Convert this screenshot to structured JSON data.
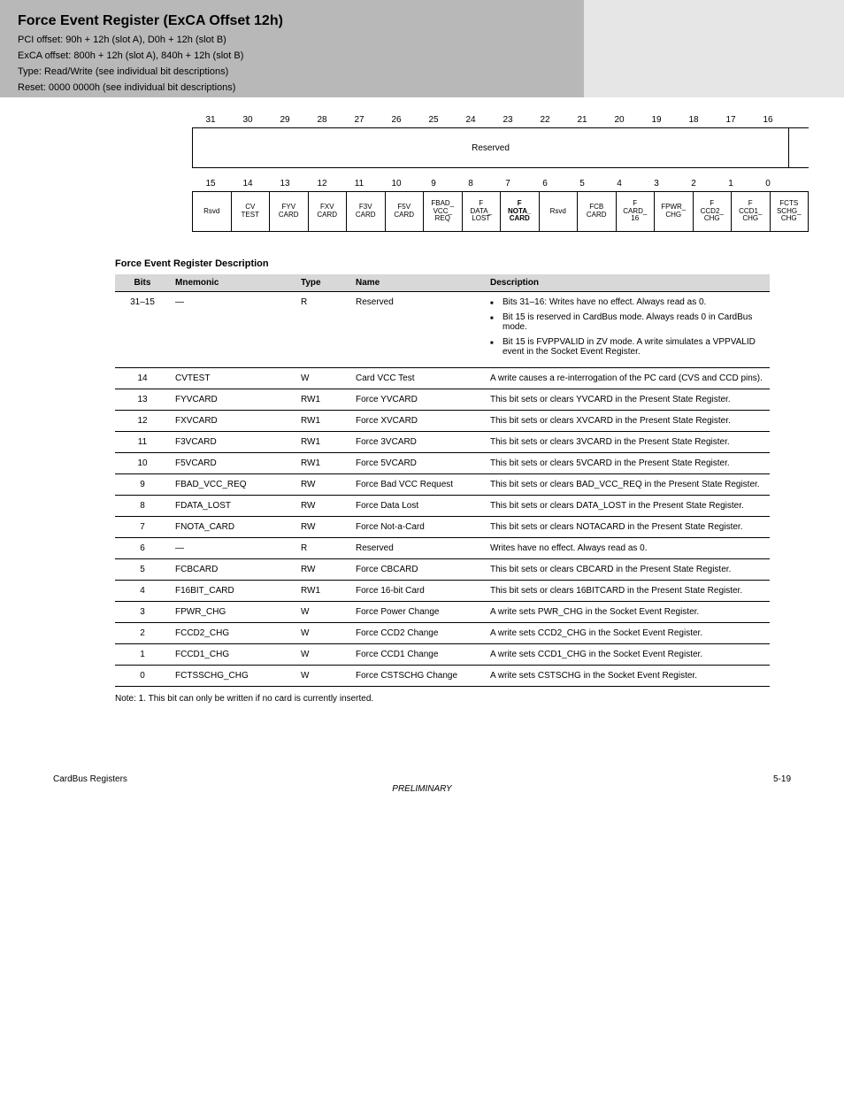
{
  "header": {
    "title": "Force Event Register (ExCA Offset 12h)",
    "pci_offset": "PCI offset: 90h + 12h (slot A), D0h + 12h (slot B)",
    "exca_offset": "ExCA offset: 800h + 12h (slot A), 840h + 12h (slot B)",
    "type": "Type: Read/Write (see individual bit descriptions)",
    "reset": "Reset: 0000 0000h (see individual bit descriptions)"
  },
  "bit_diagram": {
    "row1_nums": [
      "31",
      "30",
      "29",
      "28",
      "27",
      "26",
      "25",
      "24",
      "23",
      "22",
      "21",
      "20",
      "19",
      "18",
      "17",
      "16"
    ],
    "row1_cells": [
      {
        "lines": [
          "Reserved"
        ],
        "span": 16
      }
    ],
    "row2_nums": [
      "15",
      "14",
      "13",
      "12",
      "11",
      "10",
      "9",
      "8",
      "7",
      "6",
      "5",
      "4",
      "3",
      "2",
      "1",
      "0"
    ],
    "row2_cells": [
      {
        "lines": [
          "Rsvd"
        ]
      },
      {
        "lines": [
          "CV",
          "TEST"
        ]
      },
      {
        "lines": [
          "FYV",
          "CARD"
        ]
      },
      {
        "lines": [
          "FXV",
          "CARD"
        ]
      },
      {
        "lines": [
          "F3V",
          "CARD"
        ]
      },
      {
        "lines": [
          "F5V",
          "CARD"
        ]
      },
      {
        "lines": [
          "FBAD_",
          "VCC_",
          "REQ"
        ]
      },
      {
        "lines": [
          "F",
          "DATA_",
          "LOST"
        ]
      },
      {
        "lines": [
          "F",
          "NOTA_",
          "CARD"
        ],
        "bold": true
      },
      {
        "lines": [
          "Rsvd"
        ]
      },
      {
        "lines": [
          "FCB",
          "CARD"
        ]
      },
      {
        "lines": [
          "F",
          "CARD_",
          "16"
        ]
      },
      {
        "lines": [
          "FPWR_",
          "CHG"
        ]
      },
      {
        "lines": [
          "F",
          "CCD2_",
          "CHG"
        ]
      },
      {
        "lines": [
          "F",
          "CCD1_",
          "CHG"
        ]
      },
      {
        "lines": [
          "FCTS",
          "SCHG_",
          "CHG"
        ]
      }
    ]
  },
  "table": {
    "caption": "Force Event Register Description",
    "columns": [
      "Bits",
      "Mnemonic",
      "Type",
      "Name",
      "Description"
    ],
    "rows": [
      {
        "bits": "31–15",
        "mnemonic": "—",
        "type": "R",
        "name": "Reserved",
        "desc_bullets": [
          "Bits 31–16: Writes have no effect. Always read as 0.",
          "Bit 15 is reserved in CardBus mode. Always reads 0 in CardBus mode.",
          "Bit 15 is FVPPVALID in ZV mode. A write simulates a VPPVALID event in the Socket Event Register."
        ]
      },
      {
        "bits": "14",
        "mnemonic": "CVTEST",
        "type": "W",
        "name": "Card VCC Test",
        "desc": "A write causes a re-interrogation of the PC card (CVS and CCD pins)."
      },
      {
        "bits": "13",
        "mnemonic": "FYVCARD",
        "type": "RW1",
        "name": "Force YVCARD",
        "desc": "This bit sets or clears YVCARD in the Present State Register."
      },
      {
        "bits": "12",
        "mnemonic": "FXVCARD",
        "type": "RW1",
        "name": "Force XVCARD",
        "desc": "This bit sets or clears XVCARD in the Present State Register."
      },
      {
        "bits": "11",
        "mnemonic": "F3VCARD",
        "type": "RW1",
        "name": "Force 3VCARD",
        "desc": "This bit sets or clears 3VCARD in the Present State Register."
      },
      {
        "bits": "10",
        "mnemonic": "F5VCARD",
        "type": "RW1",
        "name": "Force 5VCARD",
        "desc": "This bit sets or clears 5VCARD in the Present State Register."
      },
      {
        "bits": "9",
        "mnemonic": "FBAD_VCC_REQ",
        "type": "RW",
        "name": "Force Bad VCC Request",
        "desc": "This bit sets or clears BAD_VCC_REQ in the Present State Register."
      },
      {
        "bits": "8",
        "mnemonic": "FDATA_LOST",
        "type": "RW",
        "name": "Force Data Lost",
        "desc": "This bit sets or clears DATA_LOST in the Present State Register."
      },
      {
        "bits": "7",
        "mnemonic": "FNOTA_CARD",
        "type": "RW",
        "name": "Force Not-a-Card",
        "desc": "This bit sets or clears NOTACARD in the Present State Register."
      },
      {
        "bits": "6",
        "mnemonic": "—",
        "type": "R",
        "name": "Reserved",
        "desc": "Writes have no effect. Always read as 0."
      },
      {
        "bits": "5",
        "mnemonic": "FCBCARD",
        "type": "RW",
        "name": "Force CBCARD",
        "desc": "This bit sets or clears CBCARD in the Present State Register."
      },
      {
        "bits": "4",
        "mnemonic": "F16BIT_CARD",
        "type": "RW1",
        "name": "Force 16-bit Card",
        "desc": "This bit sets or clears 16BITCARD in the Present State Register."
      },
      {
        "bits": "3",
        "mnemonic": "FPWR_CHG",
        "type": "W",
        "name": "Force Power Change",
        "desc": "A write sets PWR_CHG in the Socket Event Register."
      },
      {
        "bits": "2",
        "mnemonic": "FCCD2_CHG",
        "type": "W",
        "name": "Force CCD2 Change",
        "desc": "A write sets CCD2_CHG in the Socket Event Register."
      },
      {
        "bits": "1",
        "mnemonic": "FCCD1_CHG",
        "type": "W",
        "name": "Force CCD1 Change",
        "desc": "A write sets CCD1_CHG in the Socket Event Register."
      },
      {
        "bits": "0",
        "mnemonic": "FCTSSCHG_CHG",
        "type": "W",
        "name": "Force CSTSCHG Change",
        "desc": "A write sets CSTSCHG in the Socket Event Register."
      }
    ],
    "note": "Note: 1. This bit can only be written if no card is currently inserted."
  },
  "footer": {
    "left": "CardBus Registers",
    "right": "5-19",
    "mid": "PRELIMINARY"
  }
}
